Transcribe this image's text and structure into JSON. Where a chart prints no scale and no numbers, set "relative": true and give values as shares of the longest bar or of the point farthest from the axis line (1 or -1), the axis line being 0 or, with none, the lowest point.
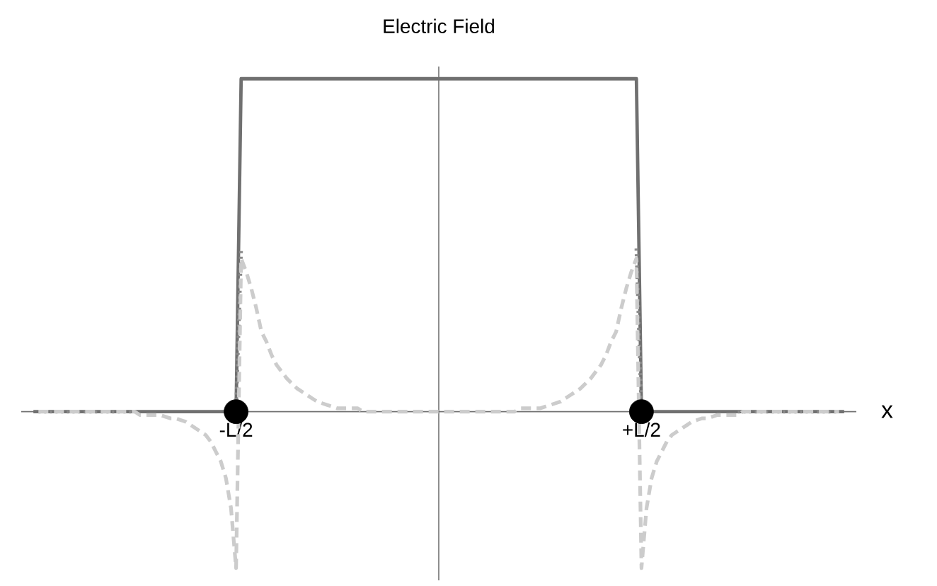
{
  "chart_data": {
    "type": "line",
    "title": "Electric Field",
    "xlabel": "x",
    "relative": true,
    "tick_labels": "x",
    "categories": [
      null,
      null,
      null,
      null,
      null,
      null,
      null,
      null,
      null,
      null,
      null,
      null,
      null,
      null,
      null,
      null,
      null,
      null,
      null,
      null,
      null,
      null,
      null,
      null,
      null,
      null,
      null,
      null,
      null,
      null,
      null,
      null,
      null,
      null,
      null,
      null,
      null,
      null,
      null,
      null,
      null,
      null,
      "-L/2",
      null,
      null,
      null,
      null,
      null,
      null,
      null,
      null,
      null,
      null,
      null,
      null,
      null,
      null,
      null,
      null,
      null,
      null,
      null,
      null,
      null,
      null,
      null,
      null,
      null,
      null,
      null,
      null,
      null,
      null,
      null,
      null,
      null,
      null,
      null,
      null,
      null,
      null,
      null,
      null,
      null,
      null,
      null,
      null,
      null,
      null,
      null,
      null,
      null,
      null,
      null,
      null,
      null,
      null,
      null,
      null,
      null,
      null,
      null,
      null,
      null,
      null,
      null,
      null,
      null,
      null,
      null,
      null,
      null,
      null,
      null,
      null,
      null,
      null,
      null,
      null,
      null,
      null,
      null,
      "+L/2",
      null,
      null,
      null,
      null,
      null,
      null,
      null,
      null,
      null,
      null,
      null,
      null,
      null,
      null,
      null,
      null,
      null,
      null,
      null,
      null,
      null,
      null,
      null,
      null,
      null,
      null,
      null,
      null,
      null,
      null,
      null,
      null,
      null,
      null,
      null,
      null,
      null,
      null,
      null,
      null,
      null,
      null
    ],
    "series": [
      {
        "color": "#707070",
        "line_style": "solid",
        "values": [
          null,
          null,
          0,
          0,
          0,
          0,
          0,
          0,
          0,
          0,
          0,
          0,
          0,
          0,
          0,
          0,
          0,
          0,
          0,
          0,
          0,
          0,
          0,
          0,
          0,
          0,
          0,
          0,
          0,
          0,
          0,
          0,
          0,
          0,
          0,
          0,
          0,
          0,
          0,
          0,
          0,
          0,
          0,
          1,
          1,
          1,
          1,
          1,
          1,
          1,
          1,
          1,
          1,
          1,
          1,
          1,
          1,
          1,
          1,
          1,
          1,
          1,
          1,
          1,
          1,
          1,
          1,
          1,
          1,
          1,
          1,
          1,
          1,
          1,
          1,
          1,
          1,
          1,
          1,
          1,
          1,
          1,
          1,
          1,
          1,
          1,
          1,
          1,
          1,
          1,
          1,
          1,
          1,
          1,
          1,
          1,
          1,
          1,
          1,
          1,
          1,
          1,
          1,
          1,
          1,
          1,
          1,
          1,
          1,
          1,
          1,
          1,
          1,
          1,
          1,
          1,
          1,
          1,
          1,
          1,
          1,
          1,
          0,
          0,
          0,
          0,
          0,
          0,
          0,
          0,
          0,
          0,
          0,
          0,
          0,
          0,
          0,
          0,
          0,
          0,
          0,
          0,
          0,
          0,
          0,
          0,
          0,
          0,
          0,
          0,
          0,
          0,
          0,
          0,
          0,
          0,
          0,
          0,
          0,
          0,
          0,
          0,
          0,
          null,
          null
        ]
      },
      {
        "color": "#8a8a8a",
        "line_style": "dotted",
        "values": [
          null,
          null,
          null,
          0,
          0,
          0,
          0,
          0,
          0,
          0,
          0,
          0,
          0,
          0,
          0,
          0,
          0,
          0,
          0,
          0,
          0,
          0,
          0,
          0,
          null,
          null,
          null,
          null,
          null,
          null,
          null,
          null,
          null,
          null,
          null,
          null,
          null,
          null,
          null,
          null,
          null,
          null,
          0,
          0.49,
          null,
          null,
          null,
          null,
          null,
          null,
          null,
          null,
          null,
          null,
          null,
          null,
          null,
          null,
          null,
          null,
          null,
          null,
          null,
          null,
          null,
          null,
          null,
          null,
          null,
          null,
          null,
          null,
          null,
          null,
          null,
          null,
          null,
          null,
          null,
          null,
          null,
          null,
          null,
          null,
          null,
          null,
          null,
          null,
          null,
          null,
          null,
          null,
          null,
          null,
          null,
          null,
          null,
          null,
          null,
          null,
          null,
          null,
          null,
          null,
          null,
          null,
          null,
          null,
          null,
          null,
          null,
          null,
          null,
          null,
          null,
          null,
          null,
          null,
          null,
          null,
          null,
          0.49,
          0,
          null,
          null,
          null,
          null,
          null,
          null,
          null,
          null,
          null,
          null,
          null,
          null,
          null,
          null,
          null,
          null,
          null,
          null,
          0,
          0,
          0,
          0,
          0,
          0,
          0,
          0,
          0,
          0,
          0,
          0,
          0,
          0,
          0,
          0,
          0,
          0,
          0,
          0,
          0,
          null,
          null,
          null
        ]
      },
      {
        "color": "#cccccc",
        "line_style": "dashed",
        "values": [
          null,
          null,
          null,
          0,
          0,
          0,
          0,
          0,
          0,
          0,
          0,
          0,
          0,
          0,
          0,
          0,
          0,
          0,
          0,
          0,
          0,
          0,
          0,
          -0.01,
          -0.01,
          -0.01,
          -0.01,
          -0.01,
          -0.015,
          -0.02,
          -0.02,
          -0.025,
          -0.03,
          -0.04,
          -0.05,
          -0.06,
          -0.07,
          -0.09,
          -0.12,
          -0.15,
          -0.2,
          -0.29,
          -0.47,
          0.46,
          0.42,
          0.37,
          0.31,
          0.24,
          0.21,
          0.17,
          0.14,
          0.12,
          0.1,
          0.085,
          0.07,
          0.06,
          0.05,
          0.04,
          0.03,
          0.025,
          0.02,
          0.015,
          0.01,
          0.01,
          0.01,
          0.01,
          0.01,
          0,
          0,
          0,
          0,
          0,
          0,
          0,
          0,
          0,
          0,
          0,
          0,
          0,
          0,
          0,
          0,
          0,
          0,
          0,
          0,
          0,
          0,
          0,
          0,
          0,
          0,
          0,
          0,
          0,
          0,
          0,
          0.01,
          0.01,
          0.01,
          0.01,
          0.01,
          0.015,
          0.02,
          0.025,
          0.03,
          0.04,
          0.05,
          0.06,
          0.07,
          0.085,
          0.1,
          0.12,
          0.14,
          0.17,
          0.21,
          0.24,
          0.31,
          0.37,
          0.42,
          0.46,
          -0.47,
          -0.29,
          -0.2,
          -0.15,
          -0.12,
          -0.09,
          -0.07,
          -0.06,
          -0.05,
          -0.04,
          -0.03,
          -0.025,
          -0.02,
          -0.02,
          -0.015,
          -0.01,
          -0.01,
          -0.01,
          -0.01,
          -0.01,
          0,
          0,
          0,
          0,
          0,
          0,
          0,
          0,
          0,
          0,
          0,
          0,
          0,
          0,
          0,
          0,
          0,
          0,
          0,
          0,
          null,
          null,
          null
        ]
      },
      {
        "type": "scatter",
        "color": "#000000",
        "marker": "circle",
        "x": [
          "-L/2",
          "+L/2"
        ],
        "values": [
          0,
          0
        ]
      }
    ]
  }
}
